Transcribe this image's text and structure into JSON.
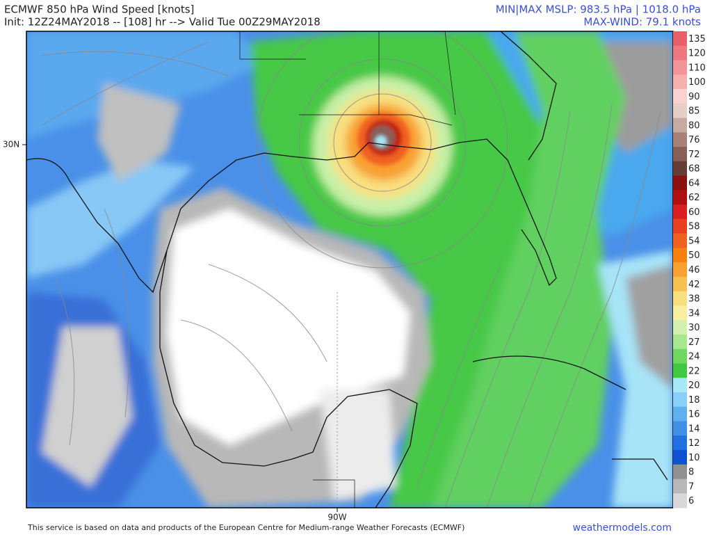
{
  "header": {
    "title": "ECMWF 850 hPa Wind Speed [knots]",
    "subtitle": "Init: 12Z24MAY2018 -- [108] hr --> Valid Tue 00Z29MAY2018",
    "mslp": "MIN|MAX MSLP: 983.5 hPa | 1018.0 hPa",
    "max_wind": "MAX-WIND: 79.1 knots"
  },
  "map": {
    "lat_label": "30N",
    "lon_label": "90W"
  },
  "colorbar": [
    {
      "label": "135",
      "color": "#e8606a"
    },
    {
      "label": "120",
      "color": "#ee7a80"
    },
    {
      "label": "110",
      "color": "#f29498"
    },
    {
      "label": "100",
      "color": "#f6b0b0"
    },
    {
      "label": "90",
      "color": "#fad0d0"
    },
    {
      "label": "85",
      "color": "#e6cfc6"
    },
    {
      "label": "80",
      "color": "#c8aaa0"
    },
    {
      "label": "76",
      "color": "#a88278"
    },
    {
      "label": "72",
      "color": "#886058"
    },
    {
      "label": "68",
      "color": "#683c34"
    },
    {
      "label": "64",
      "color": "#8c1010"
    },
    {
      "label": "62",
      "color": "#b01010"
    },
    {
      "label": "60",
      "color": "#d82020"
    },
    {
      "label": "58",
      "color": "#e84020"
    },
    {
      "label": "54",
      "color": "#f06020"
    },
    {
      "label": "50",
      "color": "#f88010"
    },
    {
      "label": "46",
      "color": "#f8a030"
    },
    {
      "label": "42",
      "color": "#f8c050"
    },
    {
      "label": "38",
      "color": "#f8e080"
    },
    {
      "label": "34",
      "color": "#f8f0a0"
    },
    {
      "label": "30",
      "color": "#d4f0b0"
    },
    {
      "label": "27",
      "color": "#a8e890"
    },
    {
      "label": "24",
      "color": "#70d860"
    },
    {
      "label": "22",
      "color": "#40c840"
    },
    {
      "label": "20",
      "color": "#a8e8f8"
    },
    {
      "label": "18",
      "color": "#88d0f8"
    },
    {
      "label": "16",
      "color": "#60b0f0"
    },
    {
      "label": "14",
      "color": "#4090e8"
    },
    {
      "label": "12",
      "color": "#2070e0"
    },
    {
      "label": "10",
      "color": "#1050d0"
    },
    {
      "label": "8",
      "color": "#909090"
    },
    {
      "label": "7",
      "color": "#b8b8b8"
    },
    {
      "label": "6",
      "color": "#d8d8d8"
    }
  ],
  "footer": {
    "credit": "This service is based on data and products of the European Centre for Medium-range Weather Forecasts (ECMWF)",
    "site": "weathermodels.com"
  }
}
